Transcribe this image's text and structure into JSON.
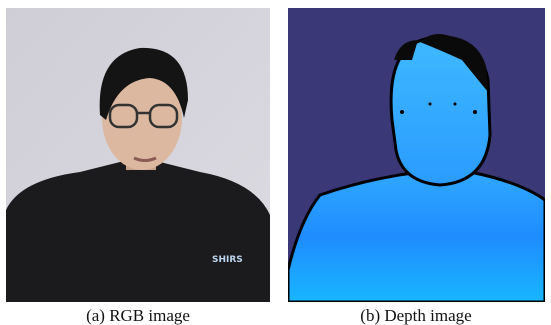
{
  "figure": {
    "panels": [
      {
        "label": "(a)",
        "caption": "RGB image"
      },
      {
        "label": "(b)",
        "caption": "Depth image"
      }
    ]
  }
}
